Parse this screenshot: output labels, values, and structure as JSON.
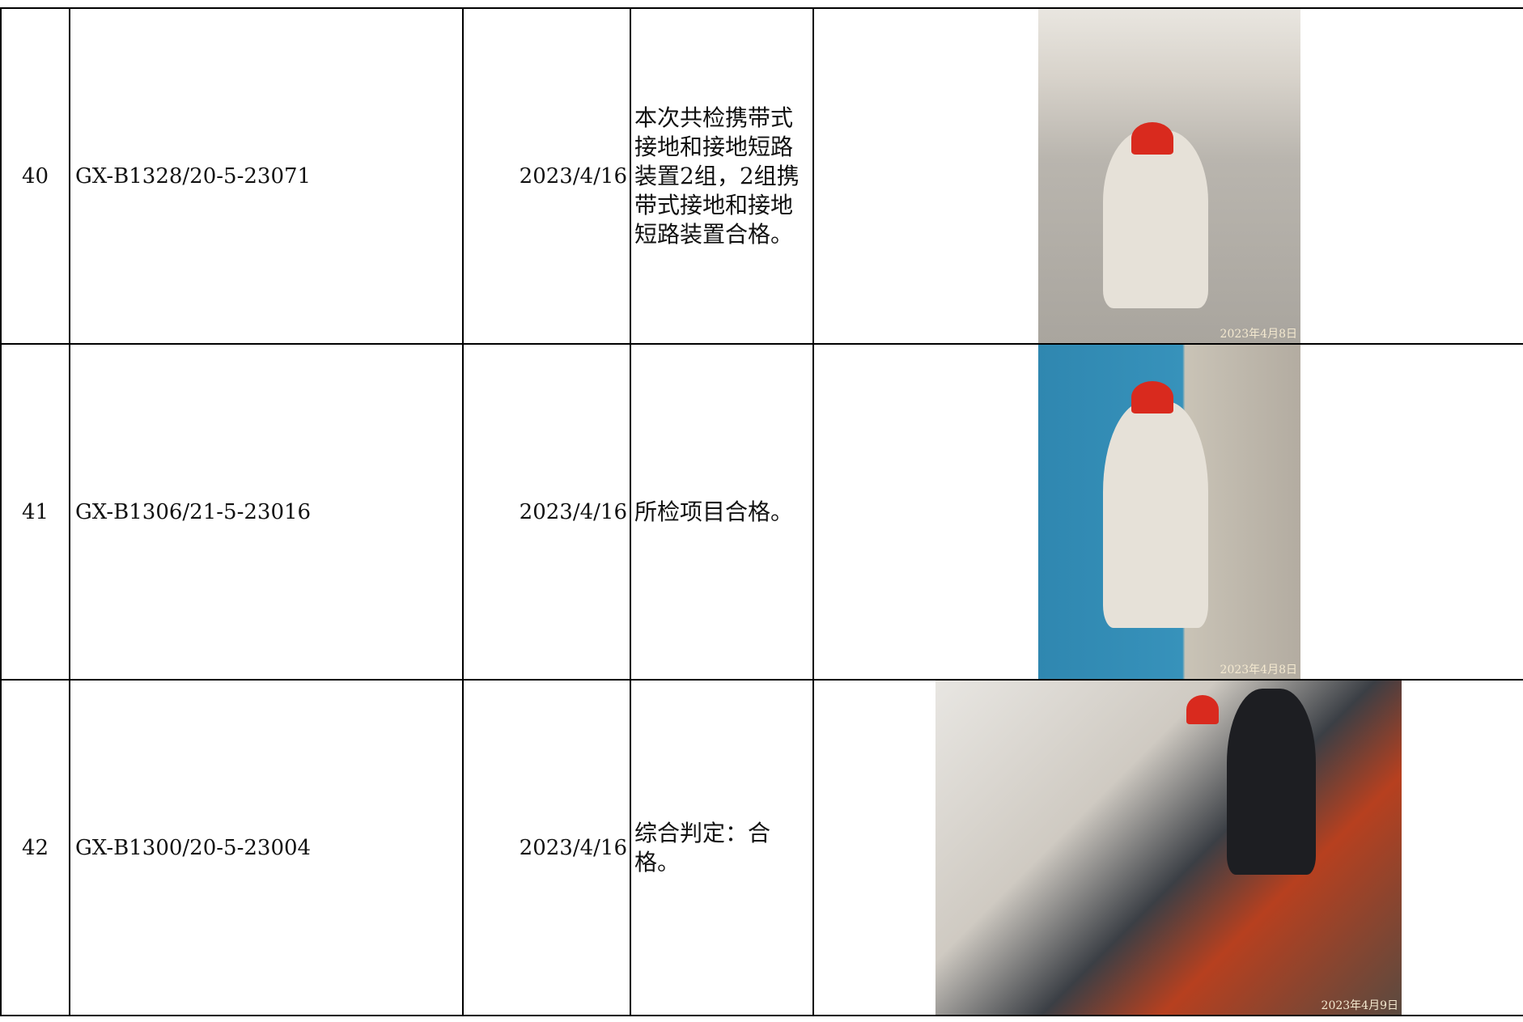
{
  "table": {
    "rows": [
      [
        "40",
        "GX-B1328/20-5-23071",
        "2023/4/16",
        "本次共检携带式接地和接地短路装置2组，2组携带式接地和接地短路装置合格。",
        "2023年4月8日"
      ],
      [
        "41",
        "GX-B1306/21-5-23016",
        "2023/4/16",
        "所检项目合格。",
        "2023年4月8日"
      ],
      [
        "42",
        "GX-B1300/20-5-23004",
        "2023/4/16",
        "综合判定：合格。",
        "2023年4月9日"
      ]
    ]
  }
}
